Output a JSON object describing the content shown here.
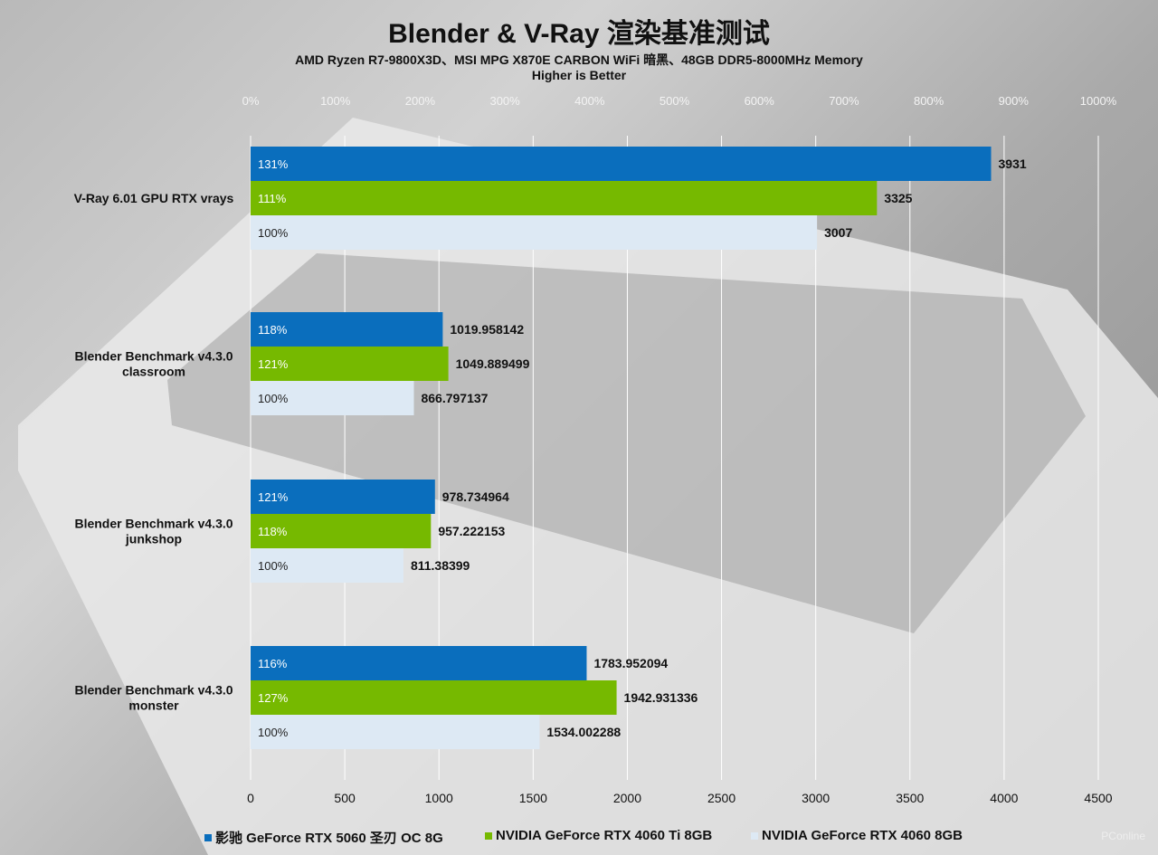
{
  "title": "Blender & V-Ray 渲染基准测试",
  "subtitle": "AMD Ryzen R7-9800X3D、MSI MPG X870E CARBON WiFi 暗黑、48GB DDR5-8000MHz Memory",
  "note": "Higher is Better",
  "watermark": "PConline",
  "colors": {
    "series1": "#0a6ebd",
    "series2": "#76b900",
    "series3": "#dde9f4"
  },
  "chart_data": {
    "type": "bar",
    "orientation": "horizontal",
    "title": "Blender & V-Ray 渲染基准测试",
    "categories": [
      "V-Ray 6.01 GPU RTX vrays",
      "Blender Benchmark v4.3.0 classroom",
      "Blender Benchmark v4.3.0 junkshop",
      "Blender Benchmark v4.3.0 monster"
    ],
    "category_lines": [
      [
        "V-Ray 6.01 GPU RTX vrays"
      ],
      [
        "Blender Benchmark v4.3.0",
        "classroom"
      ],
      [
        "Blender Benchmark v4.3.0",
        "junkshop"
      ],
      [
        "Blender Benchmark v4.3.0",
        "monster"
      ]
    ],
    "series": [
      {
        "name": "影驰 GeForce RTX 5060 圣刃 OC 8G",
        "values": [
          3931,
          1019.958142,
          978.734964,
          1783.952094
        ],
        "percent_labels": [
          "131%",
          "118%",
          "121%",
          "116%"
        ],
        "value_labels": [
          "3931",
          "1019.958142",
          "978.734964",
          "1783.952094"
        ]
      },
      {
        "name": "NVIDIA GeForce RTX 4060 Ti 8GB",
        "values": [
          3325,
          1049.889499,
          957.222153,
          1942.931336
        ],
        "percent_labels": [
          "111%",
          "121%",
          "118%",
          "127%"
        ],
        "value_labels": [
          "3325",
          "1049.889499",
          "957.222153",
          "1942.931336"
        ]
      },
      {
        "name": "NVIDIA GeForce RTX 4060 8GB",
        "values": [
          3007,
          866.797137,
          811.38399,
          1534.002288
        ],
        "percent_labels": [
          "100%",
          "100%",
          "100%",
          "100%"
        ],
        "value_labels": [
          "3007",
          "866.797137",
          "811.38399",
          "1534.002288"
        ]
      }
    ],
    "xlim": [
      0,
      4500
    ],
    "x_ticks": [
      "0",
      "500",
      "1000",
      "1500",
      "2000",
      "2500",
      "3000",
      "3500",
      "4000",
      "4500"
    ],
    "top_axis_ticks": [
      "0%",
      "100%",
      "200%",
      "300%",
      "400%",
      "500%",
      "600%",
      "700%",
      "800%",
      "900%",
      "1000%"
    ],
    "top_axis_range": [
      0,
      1000
    ],
    "grid": true,
    "legend_position": "bottom"
  }
}
